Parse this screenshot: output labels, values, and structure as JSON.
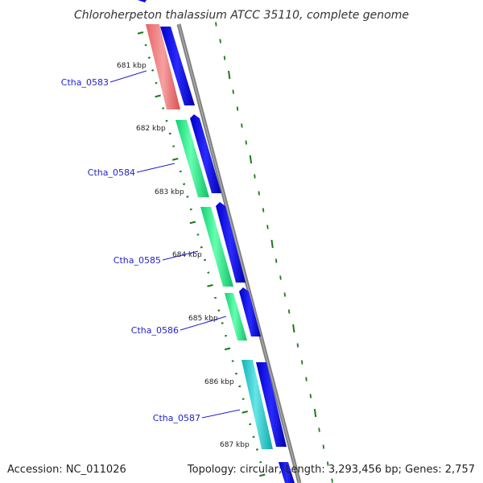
{
  "title": "Chloroherpeton thalassium ATCC 35110, complete genome",
  "footer": {
    "accession": "Accession: NC_011026",
    "summary": "Topology: circular; Length: 3,293,456 bp; Genes: 2,757"
  },
  "colors": {
    "backbone": "#808080",
    "blue_feature": "#0000ee",
    "tick": "#1a7a1a",
    "label_line": "#1f1fcf",
    "Ctha_0583": "#f08080",
    "Ctha_0584": "#22ee88",
    "Ctha_0585": "#22ee88",
    "Ctha_0586": "#22ee88",
    "Ctha_0587": "#22cccc"
  },
  "kbp_labels": [
    "681 kbp",
    "682 kbp",
    "683 kbp",
    "684 kbp",
    "685 kbp",
    "686 kbp",
    "687 kbp"
  ],
  "genes": [
    {
      "name": "Ctha_0583"
    },
    {
      "name": "Ctha_0584"
    },
    {
      "name": "Ctha_0585"
    },
    {
      "name": "Ctha_0586"
    },
    {
      "name": "Ctha_0587"
    }
  ]
}
